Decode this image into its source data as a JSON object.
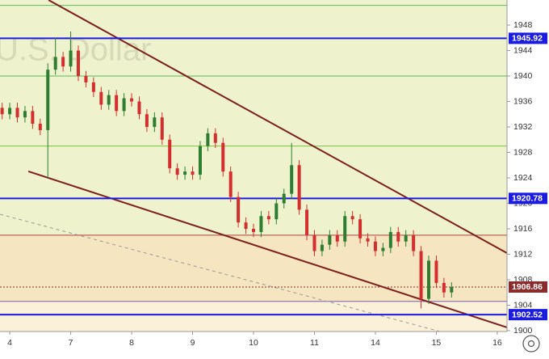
{
  "chart_data": {
    "type": "candlestick",
    "watermark": "U.S. Dollar",
    "xlim": [
      -0.16,
      8.16
    ],
    "ylim": [
      1899.87,
      1951.94
    ],
    "xticks": [
      {
        "value": 0,
        "label": "4"
      },
      {
        "value": 1,
        "label": "7"
      },
      {
        "value": 2,
        "label": "8"
      },
      {
        "value": 3,
        "label": "9"
      },
      {
        "value": 4,
        "label": "10"
      },
      {
        "value": 5,
        "label": "11"
      },
      {
        "value": 6,
        "label": "14"
      },
      {
        "value": 7,
        "label": "15"
      },
      {
        "value": 8,
        "label": "16"
      }
    ],
    "yticks": [
      1900,
      1904,
      1908,
      1912,
      1916,
      1920,
      1924,
      1928,
      1932,
      1936,
      1940,
      1944,
      1948
    ],
    "up_color": "#2e7d32",
    "down_color": "#d32f2f",
    "x": [
      -0.125,
      0,
      0.125,
      0.25,
      0.375,
      0.5,
      0.625,
      0.75,
      0.875,
      1,
      1.125,
      1.25,
      1.375,
      1.5,
      1.625,
      1.75,
      1.875,
      2,
      2.125,
      2.25,
      2.375,
      2.5,
      2.625,
      2.75,
      2.875,
      3,
      3.125,
      3.25,
      3.375,
      3.5,
      3.625,
      3.75,
      3.875,
      4,
      4.125,
      4.25,
      4.375,
      4.5,
      4.625,
      4.75,
      4.875,
      5,
      5.125,
      5.25,
      5.375,
      5.5,
      5.625,
      5.75,
      5.875,
      6,
      6.125,
      6.25,
      6.375,
      6.5,
      6.625,
      6.75,
      6.875,
      7,
      7.125,
      7.25
    ],
    "open": [
      1935,
      1934,
      1935,
      1933.5,
      1934.5,
      1932.5,
      1931.5,
      1941,
      1943,
      1941.5,
      1944,
      1940,
      1939,
      1937.5,
      1935.5,
      1937,
      1934.5,
      1936.5,
      1936,
      1934,
      1932,
      1933.5,
      1930,
      1925.5,
      1924.5,
      1925,
      1924.5,
      1929,
      1931,
      1929.5,
      1925,
      1921,
      1917,
      1916,
      1915.5,
      1918,
      1917.5,
      1920,
      1921.5,
      1926,
      1919,
      1915,
      1912.5,
      1913.5,
      1915,
      1914,
      1918,
      1917.5,
      1914.5,
      1914,
      1912.5,
      1913,
      1915.5,
      1914,
      1915,
      1912.5,
      1905,
      1911,
      1907.5,
      1906
    ],
    "high": [
      1935.8,
      1935.8,
      1935.8,
      1935.3,
      1935.3,
      1933.3,
      1942,
      1946,
      1943.8,
      1947,
      1944.8,
      1940.8,
      1939.8,
      1938.3,
      1937.8,
      1937.8,
      1937.3,
      1937.3,
      1936.8,
      1934.8,
      1934.3,
      1934.3,
      1930.8,
      1926.3,
      1925.8,
      1925.8,
      1929.8,
      1931.8,
      1931.8,
      1930.3,
      1925.8,
      1921.8,
      1917.8,
      1916.8,
      1918.8,
      1918.8,
      1920.8,
      1922.3,
      1929.5,
      1926.8,
      1919.8,
      1915.8,
      1914.3,
      1915.8,
      1915.8,
      1918.8,
      1918.8,
      1918.3,
      1915.3,
      1914.8,
      1913.8,
      1916.3,
      1916.3,
      1915.8,
      1915.8,
      1913.3,
      1911.8,
      1911.8,
      1908.3,
      1907.6
    ],
    "low": [
      1933.2,
      1933.2,
      1932.7,
      1932.7,
      1931.7,
      1930.7,
      1924,
      1940.2,
      1940.7,
      1940.7,
      1939.2,
      1938.2,
      1936.7,
      1934.7,
      1934.7,
      1933.7,
      1933.7,
      1935.2,
      1933.2,
      1931.2,
      1931.2,
      1929.2,
      1924.7,
      1923.7,
      1923.7,
      1923.7,
      1923.7,
      1928.2,
      1928.7,
      1924.2,
      1920.2,
      1916.2,
      1915.2,
      1914.7,
      1914.7,
      1916.7,
      1916.7,
      1919.2,
      1920.7,
      1918.2,
      1914.2,
      1911.7,
      1911.7,
      1912.7,
      1913.2,
      1913.2,
      1916.7,
      1913.7,
      1913.2,
      1911.7,
      1911.7,
      1912.2,
      1913.2,
      1913.2,
      1911.7,
      1903.5,
      1904.2,
      1906.7,
      1905.2,
      1905.2
    ],
    "close": [
      1934,
      1935,
      1933.5,
      1934.5,
      1932.5,
      1931.5,
      1941,
      1943,
      1941.5,
      1944,
      1940,
      1939,
      1937.5,
      1935.5,
      1937,
      1934.5,
      1936.5,
      1936,
      1934,
      1932,
      1933.5,
      1930,
      1925.5,
      1924.5,
      1925,
      1924.5,
      1929,
      1931,
      1929.5,
      1925,
      1921,
      1917,
      1916,
      1915.5,
      1918,
      1917.5,
      1920,
      1921.5,
      1926,
      1919,
      1915,
      1912.5,
      1913.5,
      1915,
      1914,
      1918,
      1917.5,
      1914.5,
      1914,
      1912.5,
      1913,
      1915.5,
      1914,
      1915,
      1912.5,
      1905,
      1911,
      1907.5,
      1906,
      1906.86
    ],
    "last_color": "#8b2b2b",
    "bands": [
      {
        "from": 1915,
        "to": 1951.94,
        "color": "#eff3cd"
      },
      {
        "from": 1904.6,
        "to": 1915,
        "color": "#f6e5c1"
      },
      {
        "from": 1899.87,
        "to": 1904.6,
        "color": "#fbf0d8"
      }
    ],
    "guides": [
      {
        "value": 1951.1,
        "color": "#5cb85c"
      },
      {
        "value": 1940,
        "color": "#5cb85c"
      },
      {
        "value": 1929,
        "color": "#7bbf4a"
      },
      {
        "value": 1915,
        "color": "#b0413e"
      },
      {
        "value": 1904.6,
        "color": "#7a5fb0"
      }
    ],
    "levels": [
      {
        "value": 1945.92,
        "color": "#1c1ce0"
      },
      {
        "value": 1920.78,
        "color": "#1c1ce0"
      },
      {
        "value": 1902.52,
        "color": "#1c1ce0"
      }
    ],
    "trendlines": [
      {
        "x": [
          0.636,
          8.16
        ],
        "y": [
          1951.94,
          1912.19
        ],
        "color": "#7b1f1f",
        "dashed": false
      },
      {
        "x": [
          0.305,
          8.16
        ],
        "y": [
          1925.02,
          1900.51
        ],
        "color": "#7b1f1f",
        "dashed": false
      },
      {
        "x": [
          -0.159,
          7.258
        ],
        "y": [
          1918.29,
          1899.37
        ],
        "color": "#999999",
        "dashed": true
      }
    ]
  }
}
